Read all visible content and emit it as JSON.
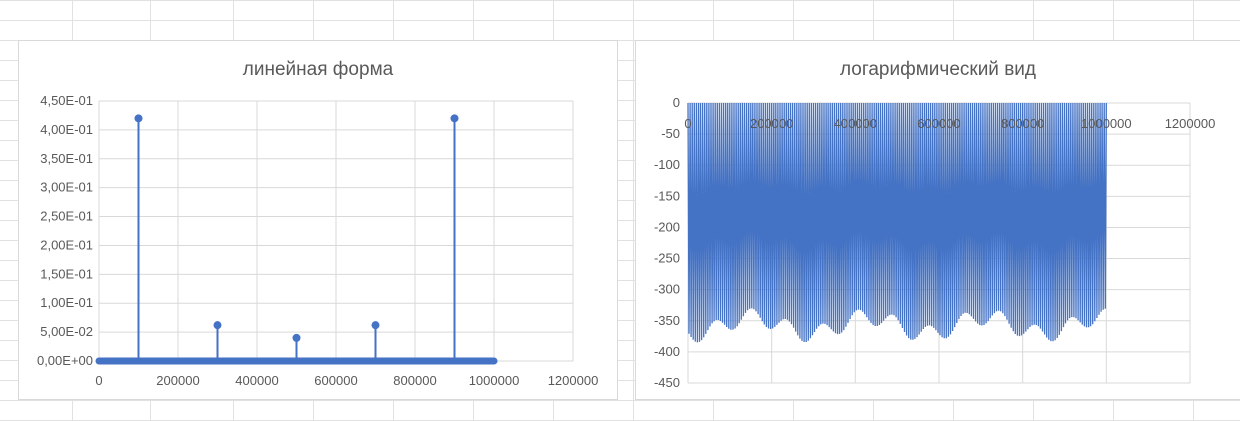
{
  "colors": {
    "series": "#4472c4",
    "gridline": "#d9d9d9",
    "sheet_grid": "#e1e1e1",
    "axis_text": "#595959"
  },
  "chart_data": [
    {
      "type": "line",
      "title": "линейная форма",
      "xlabel": "",
      "ylabel": "",
      "xlim": [
        0,
        1200000
      ],
      "ylim": [
        0,
        0.45
      ],
      "x_ticks": [
        "0",
        "200000",
        "400000",
        "600000",
        "800000",
        "1000000",
        "1200000"
      ],
      "y_ticks": [
        "0,00E+00",
        "5,00E-02",
        "1,00E-01",
        "1,50E-01",
        "2,00E-01",
        "2,50E-01",
        "3,00E-01",
        "3,50E-01",
        "4,00E-01",
        "4,50E-01"
      ],
      "grid": true,
      "legend": "none",
      "baseline_range": [
        0,
        1000000
      ],
      "peaks": [
        {
          "x": 100000,
          "y": 0.42
        },
        {
          "x": 300000,
          "y": 0.062
        },
        {
          "x": 500000,
          "y": 0.04
        },
        {
          "x": 700000,
          "y": 0.062
        },
        {
          "x": 900000,
          "y": 0.42
        }
      ]
    },
    {
      "type": "line",
      "title": "логарифмический вид",
      "xlabel": "",
      "ylabel": "",
      "xlim": [
        0,
        1200000
      ],
      "ylim": [
        -450,
        0
      ],
      "x_ticks": [
        "0",
        "200000",
        "400000",
        "600000",
        "800000",
        "1000000",
        "1200000"
      ],
      "y_ticks": [
        "0",
        "-50",
        "-100",
        "-150",
        "-200",
        "-250",
        "-300",
        "-350",
        "-400",
        "-450"
      ],
      "grid": true,
      "legend": "none",
      "x_range": [
        0,
        1000000
      ],
      "trough_depth_range": [
        -385,
        -330
      ],
      "peaks_at_zero": [
        100000,
        300000,
        500000,
        700000,
        900000
      ],
      "approx_oscillation_count": 200
    }
  ]
}
